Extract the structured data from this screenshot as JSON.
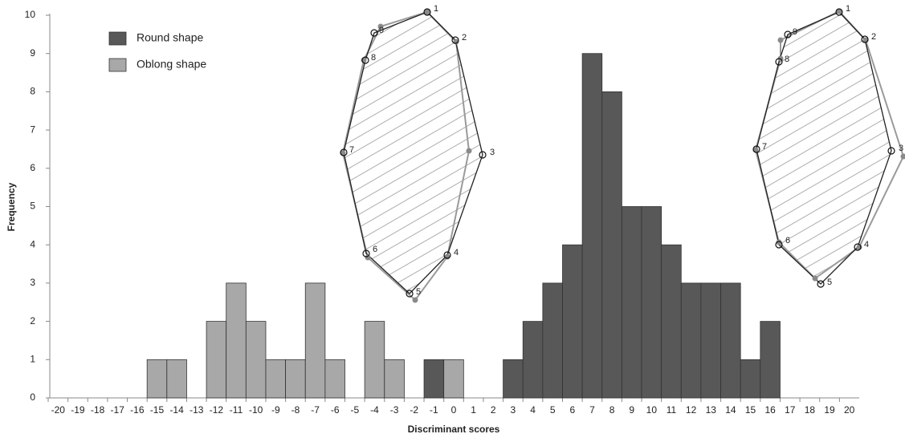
{
  "chart_data": {
    "type": "bar",
    "x_label": "Discriminant scores",
    "y_label": "Frequency",
    "categories": [
      "-20",
      "-19",
      "-18",
      "-17",
      "-16",
      "-15",
      "-14",
      "-13",
      "-12",
      "-11",
      "-10",
      "-9",
      "-8",
      "-7",
      "-6",
      "-5",
      "-4",
      "-3",
      "-2",
      "-1",
      "0",
      "1",
      "2",
      "3",
      "4",
      "5",
      "6",
      "7",
      "8",
      "9",
      "10",
      "11",
      "12",
      "13",
      "14",
      "15",
      "16",
      "17",
      "18",
      "19",
      "20"
    ],
    "series": [
      {
        "name": "Round shape",
        "color": "#585858",
        "values": [
          null,
          null,
          null,
          null,
          null,
          null,
          null,
          null,
          null,
          null,
          null,
          null,
          null,
          null,
          null,
          null,
          null,
          null,
          null,
          1,
          null,
          null,
          null,
          1,
          2,
          3,
          4,
          9,
          8,
          5,
          5,
          4,
          3,
          3,
          3,
          1,
          2,
          null,
          null,
          null,
          null
        ]
      },
      {
        "name": "Oblong shape",
        "color": "#a8a8a8",
        "values": [
          null,
          null,
          null,
          null,
          null,
          1,
          1,
          null,
          2,
          3,
          2,
          1,
          1,
          3,
          1,
          null,
          2,
          1,
          null,
          null,
          1,
          null,
          null,
          null,
          null,
          null,
          null,
          null,
          null,
          null,
          null,
          null,
          null,
          null,
          null,
          null,
          null,
          null,
          null,
          null,
          null
        ]
      }
    ],
    "ylim": [
      0,
      10
    ],
    "yticks": [
      0,
      1,
      2,
      3,
      4,
      5,
      6,
      7,
      8,
      9,
      10
    ],
    "grid": false,
    "legend": "top-left",
    "insets": [
      {
        "point_labels": [
          "1",
          "2",
          "3",
          "4",
          "5",
          "6",
          "7",
          "8",
          "9"
        ]
      },
      {
        "point_labels": [
          "1",
          "2",
          "3",
          "4",
          "5",
          "6",
          "7",
          "8",
          "9"
        ]
      }
    ]
  }
}
